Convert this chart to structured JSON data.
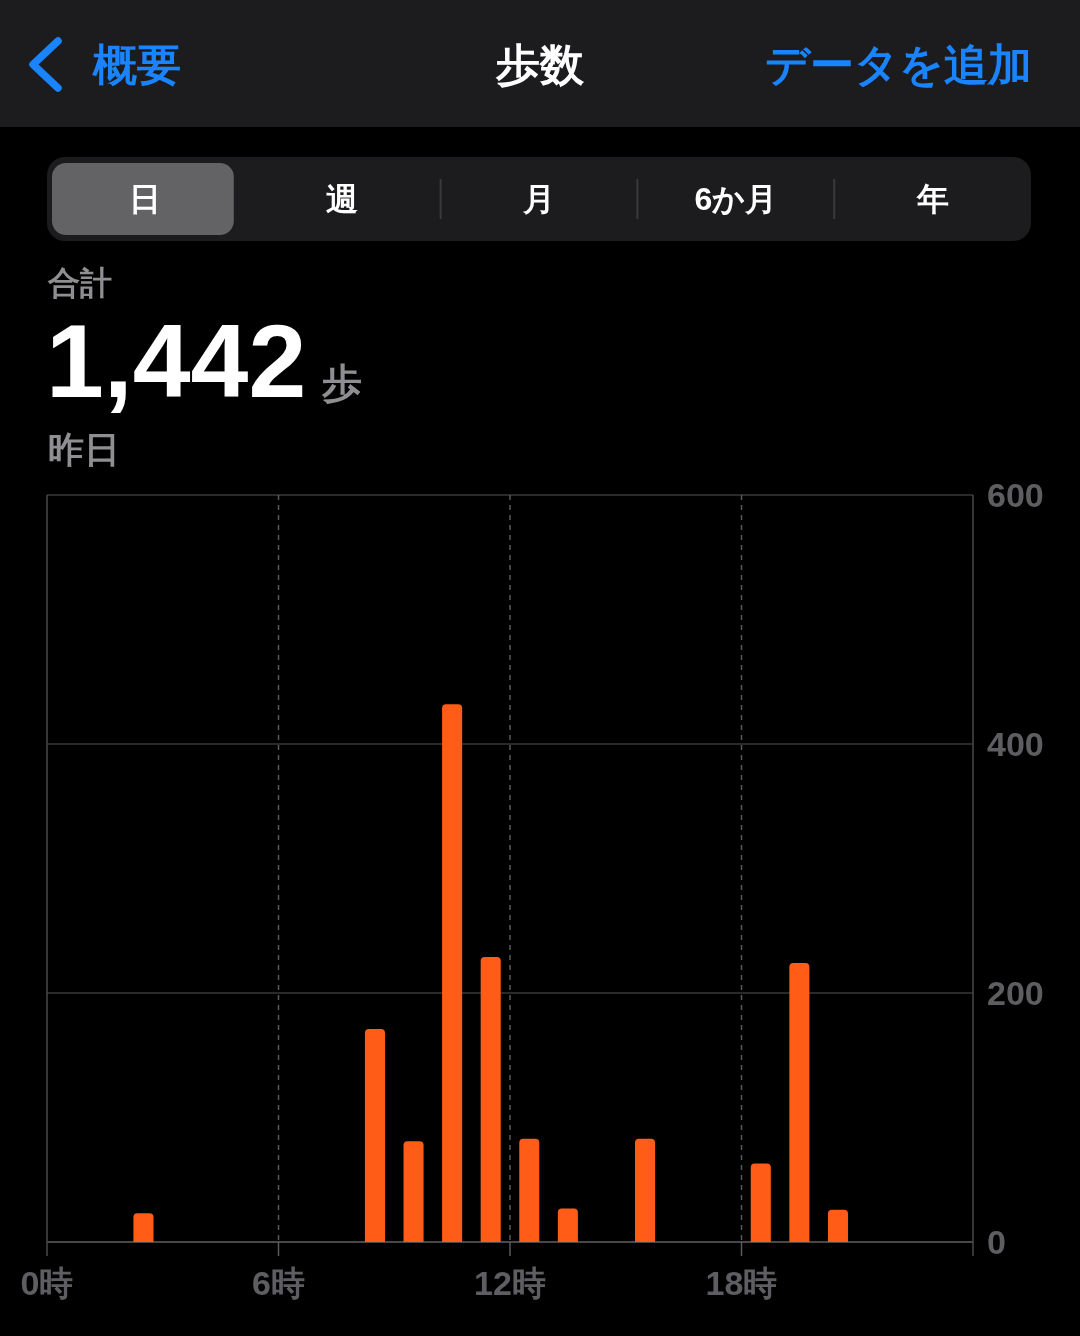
{
  "chart_data": {
    "type": "bar",
    "title": "歩数",
    "annotations": [
      "概要",
      "データを追加",
      "日",
      "週",
      "月",
      "6か月",
      "年",
      "合計",
      "1,442",
      "歩",
      "昨日"
    ],
    "x": [
      2.5,
      8.5,
      9.5,
      10.5,
      11.5,
      12.5,
      13.5,
      15.5,
      18.5,
      19.5,
      20.5
    ],
    "values": [
      23,
      171,
      81,
      432,
      229,
      83,
      27,
      83,
      63,
      224,
      26
    ],
    "color": "#ff5c17",
    "xlim": [
      0,
      24
    ],
    "xticks": [
      {
        "value": 0,
        "label": "0時"
      },
      {
        "value": 6,
        "label": "6時"
      },
      {
        "value": 12,
        "label": "12時"
      },
      {
        "value": 18,
        "label": "18時"
      },
      {
        "value": 24,
        "label": null
      }
    ],
    "ylim": [
      0,
      600
    ],
    "yticks": [
      0,
      200,
      400,
      600
    ],
    "grid": true
  }
}
